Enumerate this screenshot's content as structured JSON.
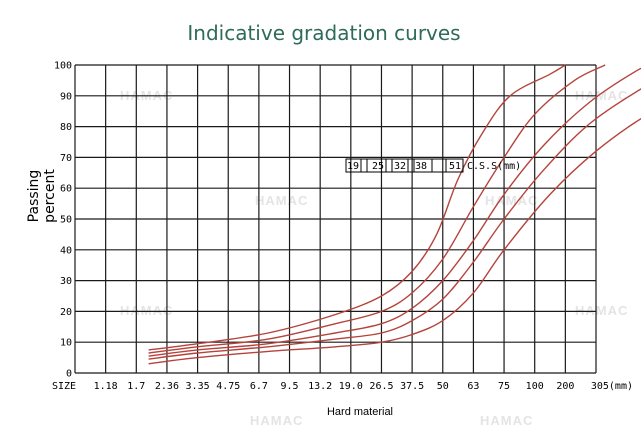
{
  "watermark": "HAMAC",
  "chart_data": {
    "type": "line",
    "title": "Indicative gradation curves",
    "xlabel": "Hard material",
    "ylabel_line1": "Passing",
    "ylabel_line2": "percent",
    "x_axis_name": "SIZE",
    "categories": [
      "1.18",
      "1.7",
      "2.36",
      "3.35",
      "4.75",
      "6.7",
      "9.5",
      "13.2",
      "19.0",
      "26.5",
      "37.5",
      "50",
      "63",
      "75",
      "100",
      "200",
      "305(mm)"
    ],
    "yticks": [
      0,
      10,
      20,
      30,
      40,
      50,
      60,
      70,
      80,
      90,
      100
    ],
    "ylim": [
      0,
      100
    ],
    "grid": true,
    "legend": {
      "labels": [
        "19",
        "25",
        "32",
        "38",
        "51"
      ],
      "suffix": "C.S.S(mm)"
    },
    "series": [
      {
        "name": "19",
        "points": [
          [
            2.4,
            7.5
          ],
          [
            4,
            9.5
          ],
          [
            6.3,
            13
          ],
          [
            8.5,
            19
          ],
          [
            10,
            25
          ],
          [
            11,
            33
          ],
          [
            11.8,
            45
          ],
          [
            12.5,
            63
          ],
          [
            13.3,
            78
          ],
          [
            14.2,
            90
          ],
          [
            15.5,
            97
          ],
          [
            16,
            100
          ]
        ]
      },
      {
        "name": "25",
        "points": [
          [
            2.4,
            6.5
          ],
          [
            4,
            8.5
          ],
          [
            6.3,
            11
          ],
          [
            8.5,
            16
          ],
          [
            10,
            20
          ],
          [
            11,
            26
          ],
          [
            12,
            37
          ],
          [
            13,
            54
          ],
          [
            14,
            70
          ],
          [
            15,
            84
          ],
          [
            16.3,
            95
          ],
          [
            17.3,
            100
          ]
        ]
      },
      {
        "name": "32",
        "points": [
          [
            2.4,
            5.5
          ],
          [
            4,
            7.5
          ],
          [
            6.3,
            9.5
          ],
          [
            8.5,
            13
          ],
          [
            10,
            16
          ],
          [
            11,
            21
          ],
          [
            12,
            30
          ],
          [
            13,
            43
          ],
          [
            14,
            58
          ],
          [
            15.3,
            74
          ],
          [
            16.8,
            88
          ],
          [
            18.3,
            98
          ],
          [
            18.8,
            100
          ]
        ]
      },
      {
        "name": "38",
        "points": [
          [
            2.4,
            4.5
          ],
          [
            4,
            6.5
          ],
          [
            6.3,
            8.5
          ],
          [
            8.5,
            11
          ],
          [
            10,
            13
          ],
          [
            11,
            17
          ],
          [
            12,
            24
          ],
          [
            13,
            36
          ],
          [
            14,
            50
          ],
          [
            15.3,
            66
          ],
          [
            16.8,
            81
          ],
          [
            18.6,
            93
          ],
          [
            20,
            100
          ]
        ]
      },
      {
        "name": "51",
        "points": [
          [
            2.4,
            3
          ],
          [
            4,
            5
          ],
          [
            6.3,
            7
          ],
          [
            8.5,
            8.5
          ],
          [
            10,
            10
          ],
          [
            11,
            12.5
          ],
          [
            12,
            17
          ],
          [
            13,
            26
          ],
          [
            14,
            40
          ],
          [
            15.5,
            58
          ],
          [
            17,
            72
          ],
          [
            18.7,
            84
          ],
          [
            20.5,
            93
          ],
          [
            22,
            100
          ]
        ]
      }
    ],
    "curve_color": "#b5433c"
  }
}
